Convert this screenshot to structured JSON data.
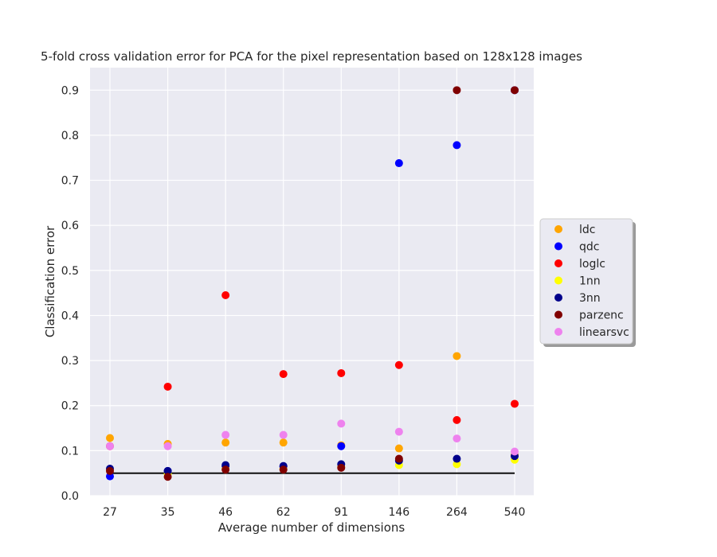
{
  "chart_data": {
    "type": "scatter",
    "title": "5-fold cross validation error for PCA for the pixel representation based on 128x128 images",
    "xlabel": "Average number of dimensions",
    "ylabel": "Classification error",
    "categories": [
      "27",
      "35",
      "46",
      "62",
      "91",
      "146",
      "264",
      "540"
    ],
    "ylim": [
      0,
      0.95
    ],
    "yticks": [
      "0.0",
      "0.1",
      "0.2",
      "0.3",
      "0.4",
      "0.5",
      "0.6",
      "0.7",
      "0.8",
      "0.9"
    ],
    "grid": true,
    "legend_position": "right",
    "baseline": {
      "value": 0.05,
      "color": "#000000"
    },
    "series": [
      {
        "name": "ldc",
        "color": "#FFA500",
        "values": [
          0.128,
          0.115,
          0.118,
          0.118,
          0.112,
          0.105,
          0.31,
          0.09
        ]
      },
      {
        "name": "qdc",
        "color": "#0000FF",
        "values": [
          0.043,
          0.055,
          0.065,
          0.065,
          0.11,
          0.738,
          0.778,
          0.9
        ]
      },
      {
        "name": "loglc",
        "color": "#FF0000",
        "values": [
          0.11,
          0.242,
          0.445,
          0.27,
          0.272,
          0.29,
          0.168,
          0.204
        ]
      },
      {
        "name": "1nn",
        "color": "#FFFF00",
        "values": [
          0.058,
          0.048,
          0.06,
          0.06,
          0.065,
          0.068,
          0.07,
          0.08
        ]
      },
      {
        "name": "3nn",
        "color": "#00008B",
        "values": [
          0.06,
          0.055,
          0.068,
          0.066,
          0.07,
          0.078,
          0.082,
          0.088
        ]
      },
      {
        "name": "parzenc",
        "color": "#800000",
        "values": [
          0.055,
          0.042,
          0.058,
          0.058,
          0.062,
          0.082,
          0.9,
          0.9
        ]
      },
      {
        "name": "linearsvc",
        "color": "#EE82EE",
        "values": [
          0.11,
          0.11,
          0.135,
          0.135,
          0.16,
          0.142,
          0.127,
          0.098
        ]
      }
    ]
  }
}
